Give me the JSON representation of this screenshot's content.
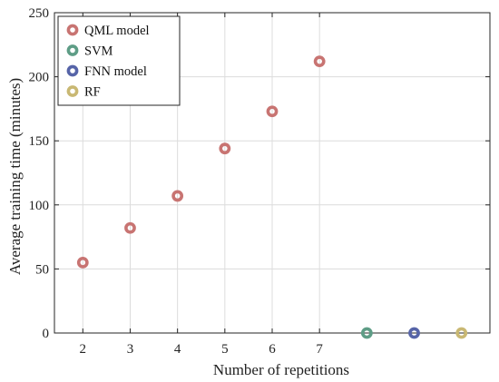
{
  "chart_data": {
    "type": "scatter",
    "title": "",
    "xlabel": "Number of repetitions",
    "ylabel": "Average training time (minutes)",
    "xlim": [
      1.4,
      10.6
    ],
    "ylim": [
      0,
      250
    ],
    "x_ticks": [
      2,
      3,
      4,
      5,
      6,
      7
    ],
    "y_ticks": [
      0,
      50,
      100,
      150,
      200,
      250
    ],
    "grid": true,
    "legend_position": "top-left",
    "series": [
      {
        "name": "QML model",
        "color": "#c87472",
        "x": [
          2,
          3,
          4,
          5,
          6,
          7
        ],
        "y": [
          55,
          82,
          107,
          144,
          173,
          212
        ]
      },
      {
        "name": "SVM",
        "color": "#5e9d86",
        "x": [
          8
        ],
        "y": [
          0
        ]
      },
      {
        "name": "FNN model",
        "color": "#5664a8",
        "x": [
          9
        ],
        "y": [
          0
        ]
      },
      {
        "name": "RF",
        "color": "#c9b873",
        "x": [
          10
        ],
        "y": [
          0
        ]
      }
    ]
  }
}
